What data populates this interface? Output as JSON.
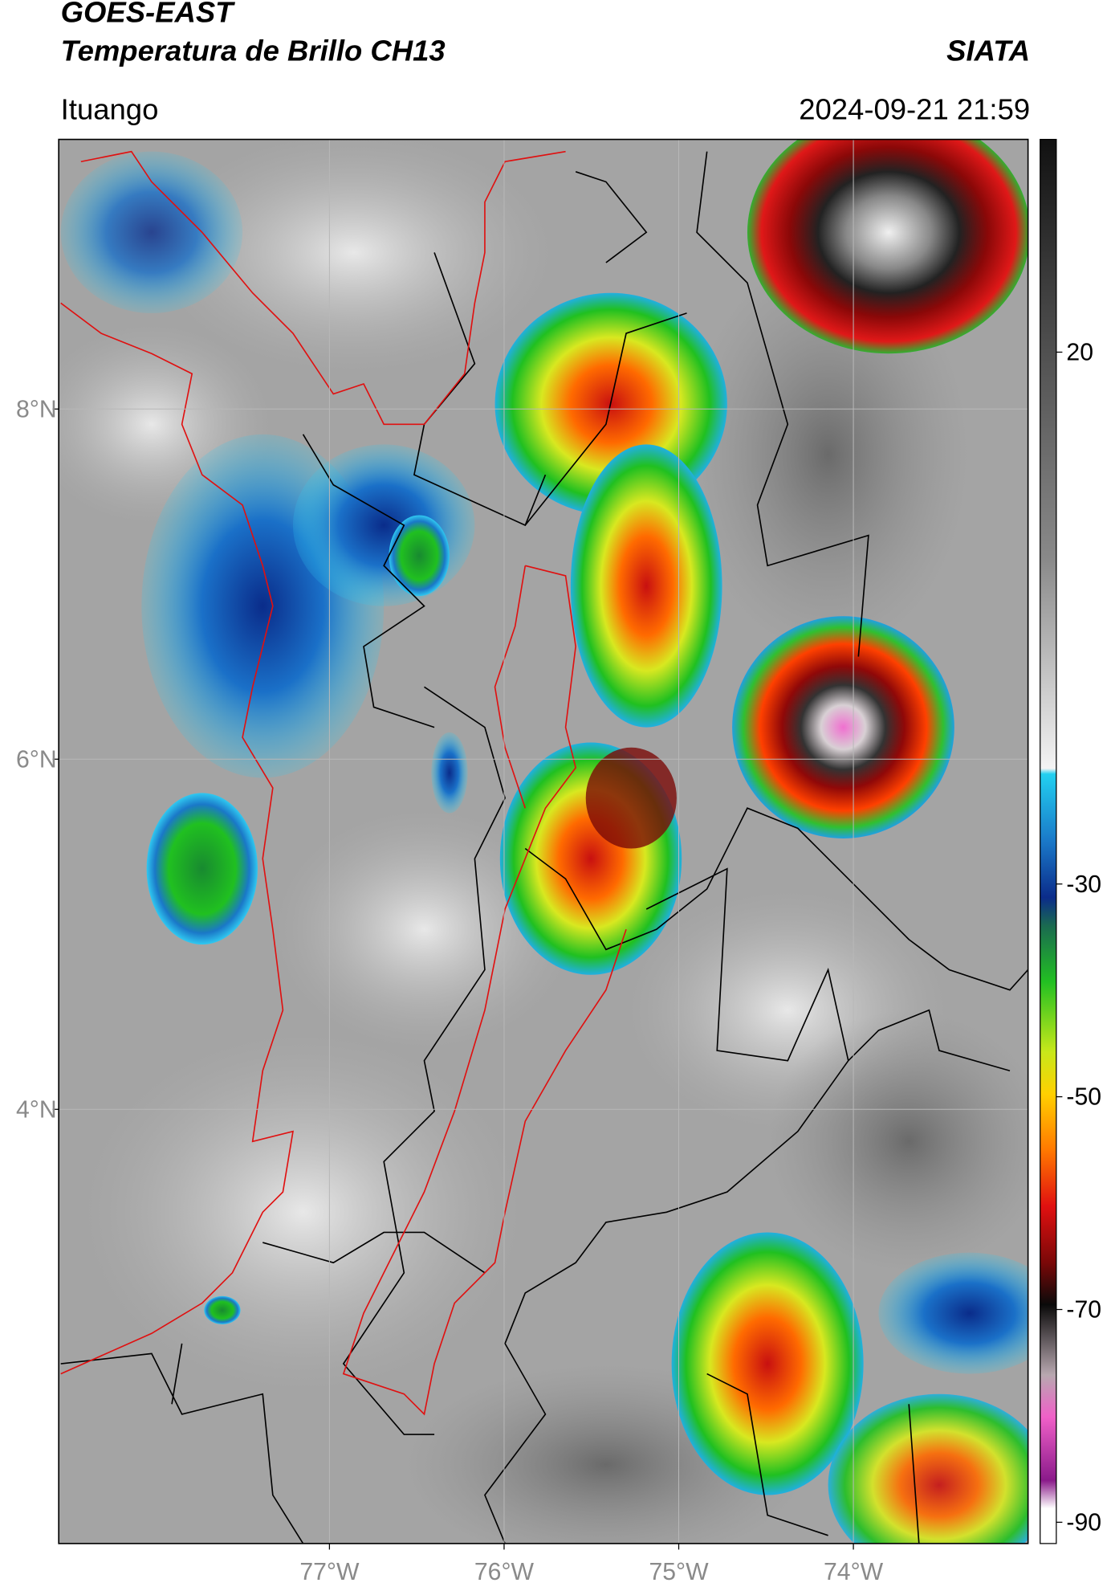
{
  "header": {
    "title": "GOES-EAST",
    "subtitle": "Temperatura de Brillo CH13",
    "source": "SIATA",
    "location": "Ituango",
    "timestamp": "2024-09-21 21:59"
  },
  "map": {
    "lonlim": [
      -78.55,
      -73.0
    ],
    "latlim": [
      1.52,
      9.54
    ],
    "grid": true,
    "lonticks": [
      {
        "value": -77,
        "label": "77°W"
      },
      {
        "value": -76,
        "label": "76°W"
      },
      {
        "value": -75,
        "label": "75°W"
      },
      {
        "value": -74,
        "label": "74°W"
      }
    ],
    "latticks": [
      {
        "value": 8,
        "label": "8°N"
      },
      {
        "value": 6,
        "label": "6°N"
      },
      {
        "value": 4,
        "label": "4°N"
      }
    ]
  },
  "colorbar": {
    "lim": [
      -92,
      40
    ],
    "ticks": [
      20,
      -30,
      -50,
      -70,
      -90
    ]
  }
}
